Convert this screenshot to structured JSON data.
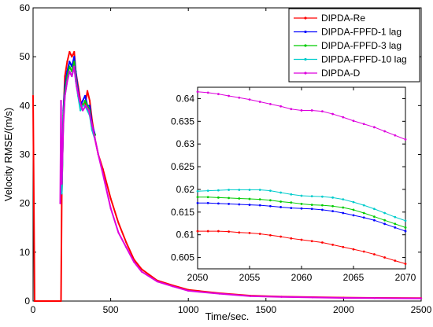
{
  "chart_data": [
    {
      "type": "line",
      "title": "",
      "xlabel": "Time/sec.",
      "ylabel": "Velocity RMSE/(m/s)",
      "xlim": [
        0,
        2500
      ],
      "ylim": [
        0,
        60
      ],
      "xticks": [
        "0",
        "500",
        "1000",
        "1500",
        "2000",
        "2500"
      ],
      "yticks": [
        "0",
        "10",
        "20",
        "30",
        "40",
        "50",
        "60"
      ],
      "grid": false,
      "legend_position": "top-right",
      "series": [
        {
          "name": "DIPDA-Re",
          "color": "#ff0000",
          "marker": "dot",
          "x": [
            0,
            10,
            180,
            185,
            195,
            205,
            220,
            235,
            250,
            265,
            275,
            290,
            305,
            320,
            335,
            350,
            365,
            380,
            400,
            420,
            450,
            500,
            550,
            600,
            650,
            700,
            800,
            900,
            1000,
            1200,
            1400,
            1600,
            1800,
            2000,
            2200,
            2500
          ],
          "y": [
            42,
            0,
            0,
            22,
            38,
            46,
            49,
            51,
            50,
            51,
            47,
            44,
            41,
            40,
            40,
            43,
            41,
            37,
            33,
            30,
            27,
            21,
            16,
            12,
            8.5,
            6.5,
            4.2,
            3.2,
            2.3,
            1.6,
            1.1,
            0.9,
            0.8,
            0.7,
            0.65,
            0.6
          ]
        },
        {
          "name": "DIPDA-FPFD-1 lag",
          "color": "#0000ff",
          "marker": "dot",
          "x": [
            180,
            185,
            195,
            205,
            220,
            235,
            250,
            265,
            275,
            290,
            305,
            320,
            335,
            350,
            365,
            380,
            400
          ],
          "y": [
            27,
            23,
            39,
            44,
            47,
            49,
            48,
            50,
            47,
            43,
            40,
            41,
            42,
            40,
            40,
            36,
            34
          ]
        },
        {
          "name": "DIPDA-FPFD-3 lag",
          "color": "#00cc00",
          "marker": "dot",
          "x": [
            180,
            185,
            195,
            205,
            220,
            235,
            250,
            265,
            275,
            290,
            305,
            320,
            335,
            350,
            365,
            380,
            400
          ],
          "y": [
            26,
            22,
            38,
            43,
            46,
            48,
            47,
            49,
            46,
            42,
            40,
            40,
            41,
            40,
            39,
            35,
            34
          ]
        },
        {
          "name": "DIPDA-FPFD-10 lag",
          "color": "#00cccc",
          "marker": "dot",
          "x": [
            180,
            185,
            195,
            205,
            220,
            235,
            250,
            265,
            275,
            290,
            305,
            320,
            335,
            350,
            365,
            380,
            400
          ],
          "y": [
            25,
            22,
            37,
            42,
            45,
            47,
            46,
            48,
            45,
            42,
            39,
            40,
            40,
            39,
            38,
            35,
            33
          ]
        },
        {
          "name": "DIPDA-D",
          "color": "#dd00dd",
          "marker": "dot",
          "x": [
            175,
            180,
            185,
            195,
            205,
            220,
            235,
            250,
            265,
            280,
            300,
            320,
            340,
            360,
            380,
            400,
            420,
            450,
            500,
            550,
            600,
            650,
            700,
            800,
            900,
            1000,
            1200,
            1400,
            1600,
            1800,
            2000,
            2200,
            2500
          ],
          "y": [
            20,
            41,
            24,
            36,
            42,
            45,
            47,
            46,
            48,
            44,
            41,
            39,
            40,
            39,
            36,
            33,
            30,
            26,
            19,
            14,
            11,
            8,
            6,
            4,
            3,
            2.1,
            1.5,
            1.0,
            0.85,
            0.75,
            0.65,
            0.6,
            0.55
          ]
        }
      ]
    },
    {
      "type": "line",
      "title": "",
      "xlabel": "",
      "ylabel": "",
      "xlim": [
        2050,
        2070
      ],
      "ylim": [
        0.6025,
        0.6425
      ],
      "xticks": [
        "2050",
        "2055",
        "2060",
        "2065",
        "2070"
      ],
      "yticks": [
        "0.605",
        "0.61",
        "0.615",
        "0.62",
        "0.625",
        "0.63",
        "0.635",
        "0.64"
      ],
      "grid": false,
      "series": [
        {
          "name": "DIPDA-Re",
          "color": "#ff0000",
          "x": [
            2050,
            2051,
            2052,
            2053,
            2054,
            2055,
            2056,
            2057,
            2058,
            2059,
            2060,
            2061,
            2062,
            2063,
            2064,
            2065,
            2066,
            2067,
            2068,
            2069,
            2070
          ],
          "y": [
            0.6108,
            0.6108,
            0.6108,
            0.6107,
            0.6105,
            0.6104,
            0.6102,
            0.6099,
            0.6096,
            0.6092,
            0.6089,
            0.6086,
            0.6083,
            0.6078,
            0.6073,
            0.6068,
            0.6063,
            0.6057,
            0.605,
            0.6043,
            0.6036
          ]
        },
        {
          "name": "DIPDA-FPFD-1 lag",
          "color": "#0000ff",
          "x": [
            2050,
            2051,
            2052,
            2053,
            2054,
            2055,
            2056,
            2057,
            2058,
            2059,
            2060,
            2061,
            2062,
            2063,
            2064,
            2065,
            2066,
            2067,
            2068,
            2069,
            2070
          ],
          "y": [
            0.617,
            0.617,
            0.6169,
            0.6168,
            0.6167,
            0.6166,
            0.6165,
            0.6163,
            0.6161,
            0.6159,
            0.6158,
            0.6157,
            0.6155,
            0.6152,
            0.6148,
            0.6143,
            0.6138,
            0.6132,
            0.6124,
            0.6116,
            0.6108
          ]
        },
        {
          "name": "DIPDA-FPFD-3 lag",
          "color": "#00cc00",
          "x": [
            2050,
            2051,
            2052,
            2053,
            2054,
            2055,
            2056,
            2057,
            2058,
            2059,
            2060,
            2061,
            2062,
            2063,
            2064,
            2065,
            2066,
            2067,
            2068,
            2069,
            2070
          ],
          "y": [
            0.6183,
            0.6183,
            0.6182,
            0.6181,
            0.618,
            0.6179,
            0.6178,
            0.6176,
            0.6173,
            0.6171,
            0.6168,
            0.6166,
            0.6165,
            0.6163,
            0.616,
            0.6155,
            0.6148,
            0.614,
            0.6132,
            0.6124,
            0.6116
          ]
        },
        {
          "name": "DIPDA-FPFD-10 lag",
          "color": "#00cccc",
          "x": [
            2050,
            2051,
            2052,
            2053,
            2054,
            2055,
            2056,
            2057,
            2058,
            2059,
            2060,
            2061,
            2062,
            2063,
            2064,
            2065,
            2066,
            2067,
            2068,
            2069,
            2070
          ],
          "y": [
            0.6196,
            0.6197,
            0.6198,
            0.6199,
            0.6199,
            0.6199,
            0.6199,
            0.6197,
            0.6193,
            0.6189,
            0.6186,
            0.6185,
            0.6184,
            0.6182,
            0.6178,
            0.6172,
            0.6165,
            0.6157,
            0.6148,
            0.6139,
            0.6131
          ]
        },
        {
          "name": "DIPDA-D",
          "color": "#dd00dd",
          "x": [
            2050,
            2051,
            2052,
            2053,
            2054,
            2055,
            2056,
            2057,
            2058,
            2059,
            2060,
            2061,
            2062,
            2063,
            2064,
            2065,
            2066,
            2067,
            2068,
            2069,
            2070
          ],
          "y": [
            0.6415,
            0.6413,
            0.641,
            0.6406,
            0.6402,
            0.6398,
            0.6393,
            0.6388,
            0.6383,
            0.6377,
            0.6374,
            0.6374,
            0.6372,
            0.6366,
            0.6359,
            0.6351,
            0.6344,
            0.6337,
            0.6328,
            0.6319,
            0.631
          ]
        }
      ]
    }
  ]
}
